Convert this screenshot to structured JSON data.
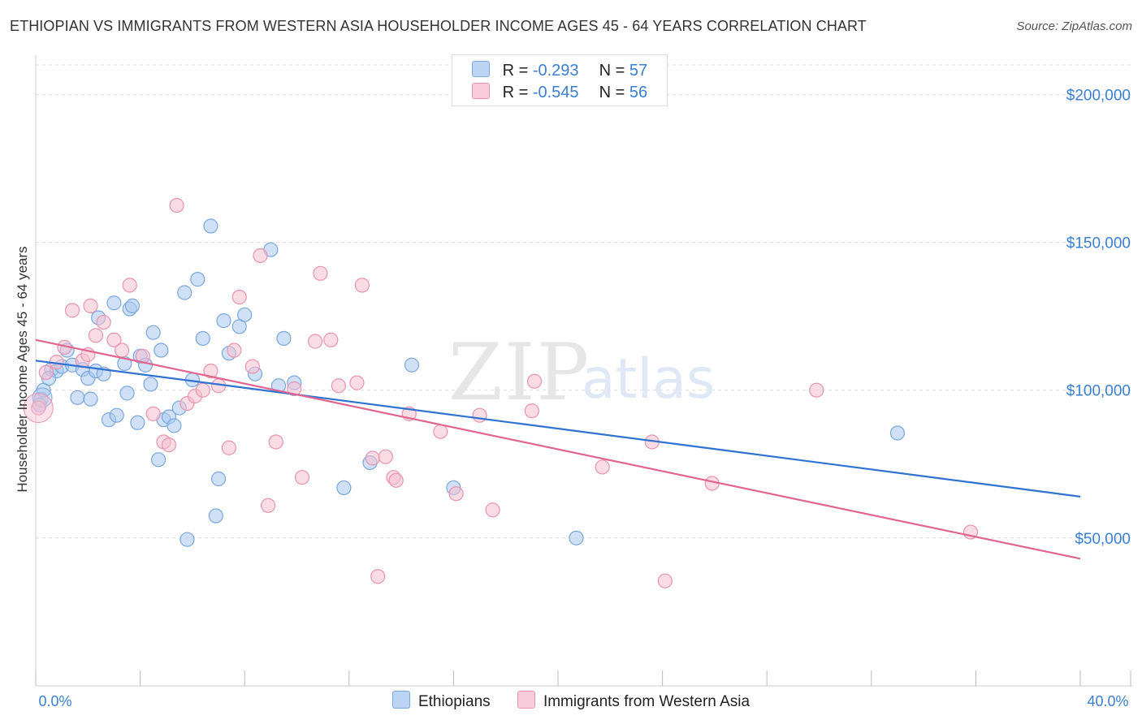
{
  "title": "ETHIOPIAN VS IMMIGRANTS FROM WESTERN ASIA HOUSEHOLDER INCOME AGES 45 - 64 YEARS CORRELATION CHART",
  "source": "Source: ZipAtlas.com",
  "watermark": {
    "zip": "ZIP",
    "atlas": "atlas"
  },
  "legend": {
    "r_label": "R =",
    "n_label": "N =",
    "rows": [
      {
        "r": "-0.293",
        "n": "57"
      },
      {
        "r": "-0.545",
        "n": "56"
      }
    ]
  },
  "colors": {
    "ethiopians_fill": "#a9c8f0",
    "ethiopians_stroke": "#7aa7dd",
    "ethiopians_line": "#2f72d0",
    "immigrants_fill": "#f6bfd0",
    "immigrants_stroke": "#e993b0",
    "immigrants_line": "#e0668f",
    "tick_text": "#3a7fd0"
  },
  "chart_data": {
    "type": "scatter",
    "title": "ETHIOPIAN VS IMMIGRANTS FROM WESTERN ASIA HOUSEHOLDER INCOME AGES 45 - 64 YEARS CORRELATION CHART",
    "xlabel": "",
    "ylabel": "Householder Income Ages 45 - 64 years",
    "xlim": [
      0,
      40
    ],
    "ylim": [
      0,
      210000
    ],
    "x_tick_labels": [
      {
        "value": 0,
        "label": "0.0%"
      },
      {
        "value": 40,
        "label": "40.0%"
      }
    ],
    "y_tick_labels": [
      {
        "value": 50000,
        "label": "$50,000"
      },
      {
        "value": 100000,
        "label": "$100,000"
      },
      {
        "value": 150000,
        "label": "$150,000"
      },
      {
        "value": 200000,
        "label": "$200,000"
      }
    ],
    "grid": true,
    "legend_position": "top-center",
    "series": [
      {
        "name": "Ethiopians",
        "r": -0.293,
        "n": 57,
        "trend": [
          [
            0,
            110000
          ],
          [
            40,
            64000
          ]
        ],
        "points": [
          [
            0.2,
            97000
          ],
          [
            0.3,
            100000
          ],
          [
            0.6,
            107000
          ],
          [
            0.8,
            106500
          ],
          [
            1.0,
            108000
          ],
          [
            1.2,
            113500
          ],
          [
            1.4,
            108500
          ],
          [
            1.6,
            97500
          ],
          [
            1.8,
            107000
          ],
          [
            2.0,
            104000
          ],
          [
            2.1,
            97000
          ],
          [
            2.3,
            106500
          ],
          [
            2.4,
            124500
          ],
          [
            2.6,
            105500
          ],
          [
            2.8,
            90000
          ],
          [
            3.0,
            129500
          ],
          [
            3.1,
            91500
          ],
          [
            3.4,
            109000
          ],
          [
            3.5,
            99000
          ],
          [
            3.6,
            127500
          ],
          [
            3.7,
            128500
          ],
          [
            3.9,
            89000
          ],
          [
            4.0,
            111500
          ],
          [
            4.2,
            108500
          ],
          [
            4.4,
            102000
          ],
          [
            4.5,
            119500
          ],
          [
            4.7,
            76500
          ],
          [
            4.8,
            113500
          ],
          [
            4.9,
            90000
          ],
          [
            5.1,
            91000
          ],
          [
            5.3,
            88000
          ],
          [
            5.5,
            94000
          ],
          [
            5.7,
            133000
          ],
          [
            5.8,
            49500
          ],
          [
            6.0,
            103500
          ],
          [
            6.2,
            137500
          ],
          [
            6.4,
            117500
          ],
          [
            6.7,
            155500
          ],
          [
            6.9,
            57500
          ],
          [
            7.0,
            70000
          ],
          [
            7.2,
            123500
          ],
          [
            7.4,
            112500
          ],
          [
            7.8,
            121500
          ],
          [
            8.0,
            125500
          ],
          [
            8.4,
            105500
          ],
          [
            9.0,
            147500
          ],
          [
            9.3,
            101500
          ],
          [
            9.5,
            117500
          ],
          [
            9.9,
            102500
          ],
          [
            11.8,
            67000
          ],
          [
            12.8,
            75500
          ],
          [
            14.4,
            108500
          ],
          [
            16.0,
            67000
          ],
          [
            20.7,
            50000
          ],
          [
            33.0,
            85500
          ],
          [
            0.15,
            95000
          ],
          [
            0.5,
            104000
          ]
        ]
      },
      {
        "name": "Immigrants from Western Asia",
        "r": -0.545,
        "n": 56,
        "trend": [
          [
            0,
            117000
          ],
          [
            40,
            43000
          ]
        ],
        "points": [
          [
            0.1,
            94000
          ],
          [
            0.4,
            106000
          ],
          [
            0.8,
            109500
          ],
          [
            1.1,
            114500
          ],
          [
            1.4,
            127000
          ],
          [
            1.8,
            110000
          ],
          [
            2.0,
            112000
          ],
          [
            2.1,
            128500
          ],
          [
            2.3,
            118500
          ],
          [
            2.6,
            123000
          ],
          [
            3.0,
            117000
          ],
          [
            3.3,
            113500
          ],
          [
            3.6,
            135500
          ],
          [
            4.1,
            111500
          ],
          [
            4.5,
            92000
          ],
          [
            4.9,
            82500
          ],
          [
            5.1,
            81500
          ],
          [
            5.4,
            162500
          ],
          [
            5.8,
            95500
          ],
          [
            6.1,
            98000
          ],
          [
            6.4,
            100000
          ],
          [
            6.7,
            106500
          ],
          [
            7.0,
            101500
          ],
          [
            7.4,
            80500
          ],
          [
            7.6,
            113500
          ],
          [
            7.8,
            131500
          ],
          [
            8.3,
            108000
          ],
          [
            8.6,
            145500
          ],
          [
            8.9,
            61000
          ],
          [
            9.2,
            82500
          ],
          [
            9.9,
            100500
          ],
          [
            10.2,
            70500
          ],
          [
            10.7,
            116500
          ],
          [
            10.9,
            139500
          ],
          [
            11.3,
            117000
          ],
          [
            11.6,
            101500
          ],
          [
            12.3,
            102500
          ],
          [
            12.5,
            135500
          ],
          [
            12.9,
            77000
          ],
          [
            13.1,
            37000
          ],
          [
            13.4,
            77500
          ],
          [
            13.7,
            70500
          ],
          [
            13.8,
            69500
          ],
          [
            14.3,
            92000
          ],
          [
            15.5,
            86000
          ],
          [
            16.1,
            65000
          ],
          [
            17.0,
            91500
          ],
          [
            17.5,
            59500
          ],
          [
            19.0,
            93000
          ],
          [
            19.1,
            103000
          ],
          [
            21.7,
            74000
          ],
          [
            23.6,
            82500
          ],
          [
            24.1,
            35500
          ],
          [
            25.9,
            68500
          ],
          [
            29.9,
            100000
          ],
          [
            35.8,
            52000
          ]
        ]
      }
    ]
  },
  "bottom_legend": [
    {
      "label": "Ethiopians"
    },
    {
      "label": "Immigrants from Western Asia"
    }
  ]
}
